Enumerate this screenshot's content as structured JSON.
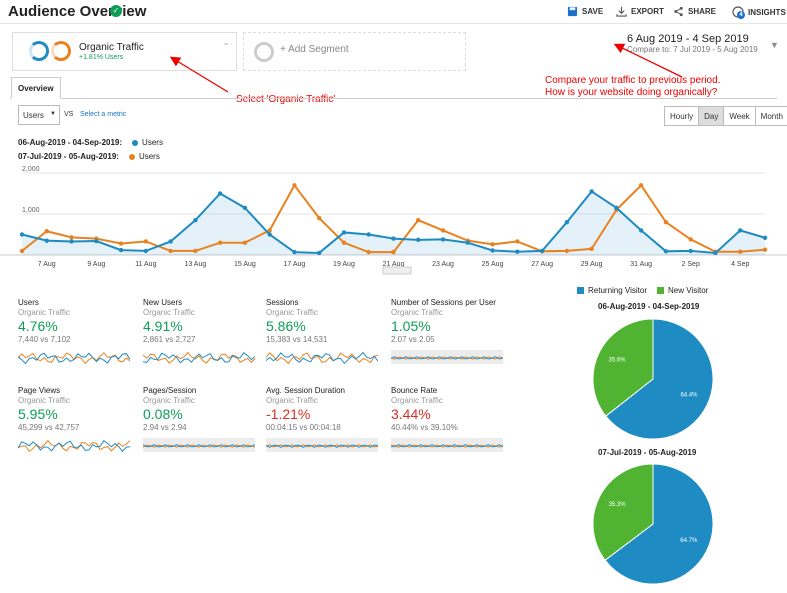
{
  "header": {
    "title": "Audience Overview",
    "save": "SAVE",
    "export": "EXPORT",
    "share": "SHARE",
    "insights": "INSIGHTS",
    "insights_badge": "4"
  },
  "segments": {
    "organic_title": "Organic Traffic",
    "organic_sub": "+1.81% Users",
    "add_segment": "+ Add Segment"
  },
  "date": {
    "range": "6 Aug 2019 - 4 Sep 2019",
    "compare": "Compare to: 7 Jul 2019 - 5 Aug 2019"
  },
  "annotations": {
    "select_organic": "Select 'Organic Traffic'",
    "compare_line1": "Compare your traffic to previous period.",
    "compare_line2": "How is your website doing organically?"
  },
  "tabs": {
    "overview": "Overview"
  },
  "controls": {
    "metric_select": "Users",
    "vs": "VS",
    "select_metric": "Select a metric",
    "periods": [
      "Hourly",
      "Day",
      "Week",
      "Month"
    ],
    "active_period": "Day"
  },
  "legend": {
    "current": "06-Aug-2019 - 04-Sep-2019:",
    "previous": "07-Jul-2019 - 05-Aug-2019:",
    "series": "Users"
  },
  "colors": {
    "blue": "#1e8bc3",
    "orange": "#e8821e",
    "green": "#0f9d58",
    "red": "#d93025",
    "pie_green": "#50b432"
  },
  "chart_data": {
    "type": "line",
    "ylim": [
      0,
      2000
    ],
    "yticks": [
      "2,000",
      "1,000"
    ],
    "xticks": [
      "7 Aug",
      "9 Aug",
      "11 Aug",
      "13 Aug",
      "15 Aug",
      "17 Aug",
      "19 Aug",
      "21 Aug",
      "23 Aug",
      "25 Aug",
      "27 Aug",
      "29 Aug",
      "31 Aug",
      "2 Sep",
      "4 Sep"
    ],
    "series": [
      {
        "name": "Users",
        "values": [
          500,
          350,
          330,
          340,
          120,
          100,
          330,
          850,
          1500,
          1150,
          500,
          70,
          50,
          550,
          500,
          400,
          370,
          380,
          300,
          110,
          80,
          100,
          800,
          1550,
          1150,
          600,
          90,
          100,
          50,
          600,
          420
        ]
      },
      {
        "name": "Users",
        "values": [
          100,
          580,
          430,
          400,
          280,
          330,
          100,
          100,
          300,
          300,
          600,
          1700,
          900,
          300,
          70,
          70,
          850,
          600,
          350,
          260,
          330,
          90,
          100,
          150,
          1100,
          1700,
          800,
          380,
          80,
          80,
          130
        ]
      }
    ]
  },
  "metrics": [
    {
      "name": "Users",
      "segment": "Organic Traffic",
      "value": "4.76%",
      "compare": "7,440 vs 7,102",
      "direction": "up"
    },
    {
      "name": "New Users",
      "segment": "Organic Traffic",
      "value": "4.91%",
      "compare": "2,861 vs 2,727",
      "direction": "up"
    },
    {
      "name": "Sessions",
      "segment": "Organic Traffic",
      "value": "5.86%",
      "compare": "15,383 vs 14,531",
      "direction": "up"
    },
    {
      "name": "Number of Sessions per User",
      "segment": "Organic Traffic",
      "value": "1.05%",
      "compare": "2.07 vs 2.05",
      "direction": "up"
    },
    {
      "name": "Page Views",
      "segment": "Organic Traffic",
      "value": "5.95%",
      "compare": "45,299 vs 42,757",
      "direction": "up"
    },
    {
      "name": "Pages/Session",
      "segment": "Organic Traffic",
      "value": "0.08%",
      "compare": "2.94 vs 2.94",
      "direction": "up"
    },
    {
      "name": "Avg. Session Duration",
      "segment": "Organic Traffic",
      "value": "-1.21%",
      "compare": "00:04:15 vs 00:04:18",
      "direction": "down"
    },
    {
      "name": "Bounce Rate",
      "segment": "Organic Traffic",
      "value": "3.44%",
      "compare": "40.44% vs 39.10%",
      "direction": "down"
    }
  ],
  "pies": {
    "legend_returning": "Returning Visitor",
    "legend_new": "New Visitor",
    "charts": [
      {
        "title": "06-Aug-2019 - 04-Sep-2019",
        "returning": 64.4,
        "new": 35.6,
        "returning_label": "64.4%",
        "new_label": "35.6%"
      },
      {
        "title": "07-Jul-2019 - 05-Aug-2019",
        "returning": 64.7,
        "new": 35.3,
        "returning_label": "64.7%",
        "new_label": "35.3%"
      }
    ]
  }
}
